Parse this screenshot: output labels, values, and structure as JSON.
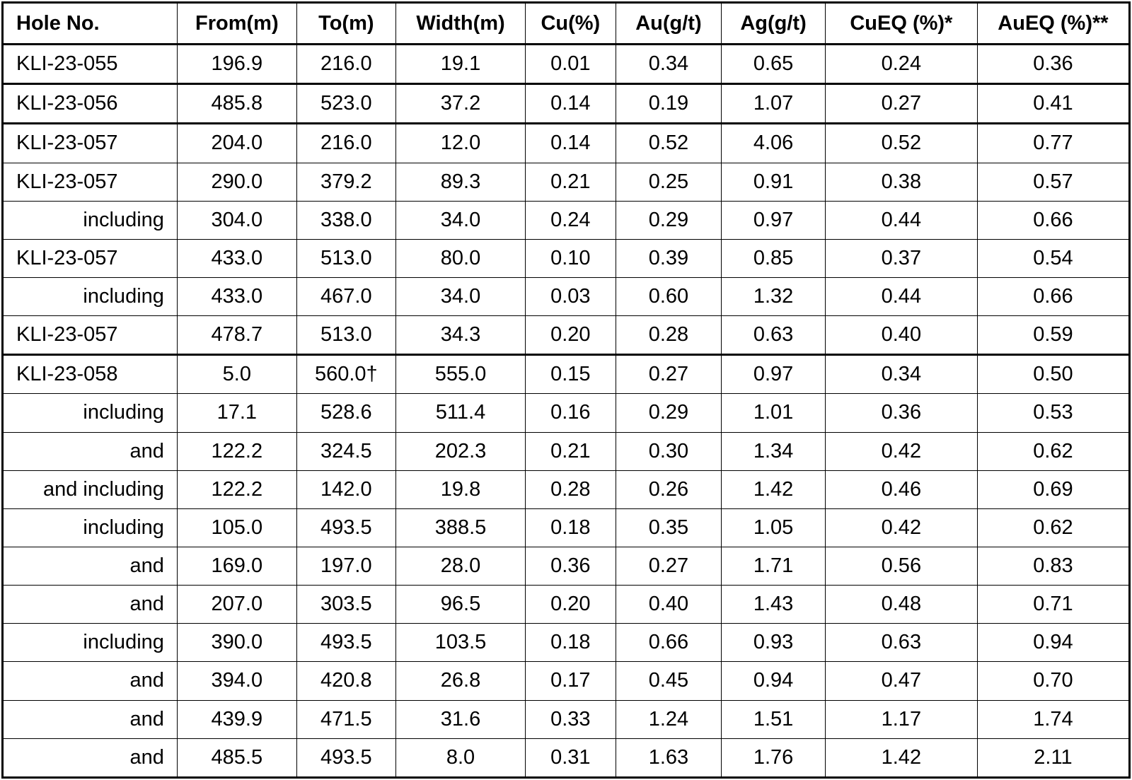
{
  "table": {
    "headers": [
      "Hole No.",
      "From(m)",
      "To(m)",
      "Width(m)",
      "Cu(%)",
      "Au(g/t)",
      "Ag(g/t)",
      "CuEQ (%)*",
      "AuEQ (%)**"
    ],
    "rows": [
      {
        "hole": "KLI-23-055",
        "sub": false,
        "group_start": false,
        "from": "196.9",
        "to": "216.0",
        "width": "19.1",
        "cu": "0.01",
        "au": "0.34",
        "ag": "0.65",
        "cueq": "0.24",
        "aueq": "0.36"
      },
      {
        "hole": "KLI-23-056",
        "sub": false,
        "group_start": true,
        "from": "485.8",
        "to": "523.0",
        "width": "37.2",
        "cu": "0.14",
        "au": "0.19",
        "ag": "1.07",
        "cueq": "0.27",
        "aueq": "0.41"
      },
      {
        "hole": "KLI-23-057",
        "sub": false,
        "group_start": true,
        "from": "204.0",
        "to": "216.0",
        "width": "12.0",
        "cu": "0.14",
        "au": "0.52",
        "ag": "4.06",
        "cueq": "0.52",
        "aueq": "0.77"
      },
      {
        "hole": "KLI-23-057",
        "sub": false,
        "group_start": false,
        "from": "290.0",
        "to": "379.2",
        "width": "89.3",
        "cu": "0.21",
        "au": "0.25",
        "ag": "0.91",
        "cueq": "0.38",
        "aueq": "0.57"
      },
      {
        "hole": "including",
        "sub": true,
        "group_start": false,
        "from": "304.0",
        "to": "338.0",
        "width": "34.0",
        "cu": "0.24",
        "au": "0.29",
        "ag": "0.97",
        "cueq": "0.44",
        "aueq": "0.66"
      },
      {
        "hole": "KLI-23-057",
        "sub": false,
        "group_start": false,
        "from": "433.0",
        "to": "513.0",
        "width": "80.0",
        "cu": "0.10",
        "au": "0.39",
        "ag": "0.85",
        "cueq": "0.37",
        "aueq": "0.54"
      },
      {
        "hole": "including",
        "sub": true,
        "group_start": false,
        "from": "433.0",
        "to": "467.0",
        "width": "34.0",
        "cu": "0.03",
        "au": "0.60",
        "ag": "1.32",
        "cueq": "0.44",
        "aueq": "0.66"
      },
      {
        "hole": "KLI-23-057",
        "sub": false,
        "group_start": false,
        "from": "478.7",
        "to": "513.0",
        "width": "34.3",
        "cu": "0.20",
        "au": "0.28",
        "ag": "0.63",
        "cueq": "0.40",
        "aueq": "0.59"
      },
      {
        "hole": "KLI-23-058",
        "sub": false,
        "group_start": true,
        "from": "5.0",
        "to": "560.0†",
        "width": "555.0",
        "cu": "0.15",
        "au": "0.27",
        "ag": "0.97",
        "cueq": "0.34",
        "aueq": "0.50"
      },
      {
        "hole": "including",
        "sub": true,
        "group_start": false,
        "from": "17.1",
        "to": "528.6",
        "width": "511.4",
        "cu": "0.16",
        "au": "0.29",
        "ag": "1.01",
        "cueq": "0.36",
        "aueq": "0.53"
      },
      {
        "hole": "and",
        "sub": true,
        "group_start": false,
        "from": "122.2",
        "to": "324.5",
        "width": "202.3",
        "cu": "0.21",
        "au": "0.30",
        "ag": "1.34",
        "cueq": "0.42",
        "aueq": "0.62"
      },
      {
        "hole": "and including",
        "sub": true,
        "group_start": false,
        "from": "122.2",
        "to": "142.0",
        "width": "19.8",
        "cu": "0.28",
        "au": "0.26",
        "ag": "1.42",
        "cueq": "0.46",
        "aueq": "0.69"
      },
      {
        "hole": "including",
        "sub": true,
        "group_start": false,
        "from": "105.0",
        "to": "493.5",
        "width": "388.5",
        "cu": "0.18",
        "au": "0.35",
        "ag": "1.05",
        "cueq": "0.42",
        "aueq": "0.62"
      },
      {
        "hole": "and",
        "sub": true,
        "group_start": false,
        "from": "169.0",
        "to": "197.0",
        "width": "28.0",
        "cu": "0.36",
        "au": "0.27",
        "ag": "1.71",
        "cueq": "0.56",
        "aueq": "0.83"
      },
      {
        "hole": "and",
        "sub": true,
        "group_start": false,
        "from": "207.0",
        "to": "303.5",
        "width": "96.5",
        "cu": "0.20",
        "au": "0.40",
        "ag": "1.43",
        "cueq": "0.48",
        "aueq": "0.71"
      },
      {
        "hole": "including",
        "sub": true,
        "group_start": false,
        "from": "390.0",
        "to": "493.5",
        "width": "103.5",
        "cu": "0.18",
        "au": "0.66",
        "ag": "0.93",
        "cueq": "0.63",
        "aueq": "0.94"
      },
      {
        "hole": "and",
        "sub": true,
        "group_start": false,
        "from": "394.0",
        "to": "420.8",
        "width": "26.8",
        "cu": "0.17",
        "au": "0.45",
        "ag": "0.94",
        "cueq": "0.47",
        "aueq": "0.70"
      },
      {
        "hole": "and",
        "sub": true,
        "group_start": false,
        "from": "439.9",
        "to": "471.5",
        "width": "31.6",
        "cu": "0.33",
        "au": "1.24",
        "ag": "1.51",
        "cueq": "1.17",
        "aueq": "1.74"
      },
      {
        "hole": "and",
        "sub": true,
        "group_start": false,
        "from": "485.5",
        "to": "493.5",
        "width": "8.0",
        "cu": "0.31",
        "au": "1.63",
        "ag": "1.76",
        "cueq": "1.42",
        "aueq": "2.11"
      }
    ]
  }
}
